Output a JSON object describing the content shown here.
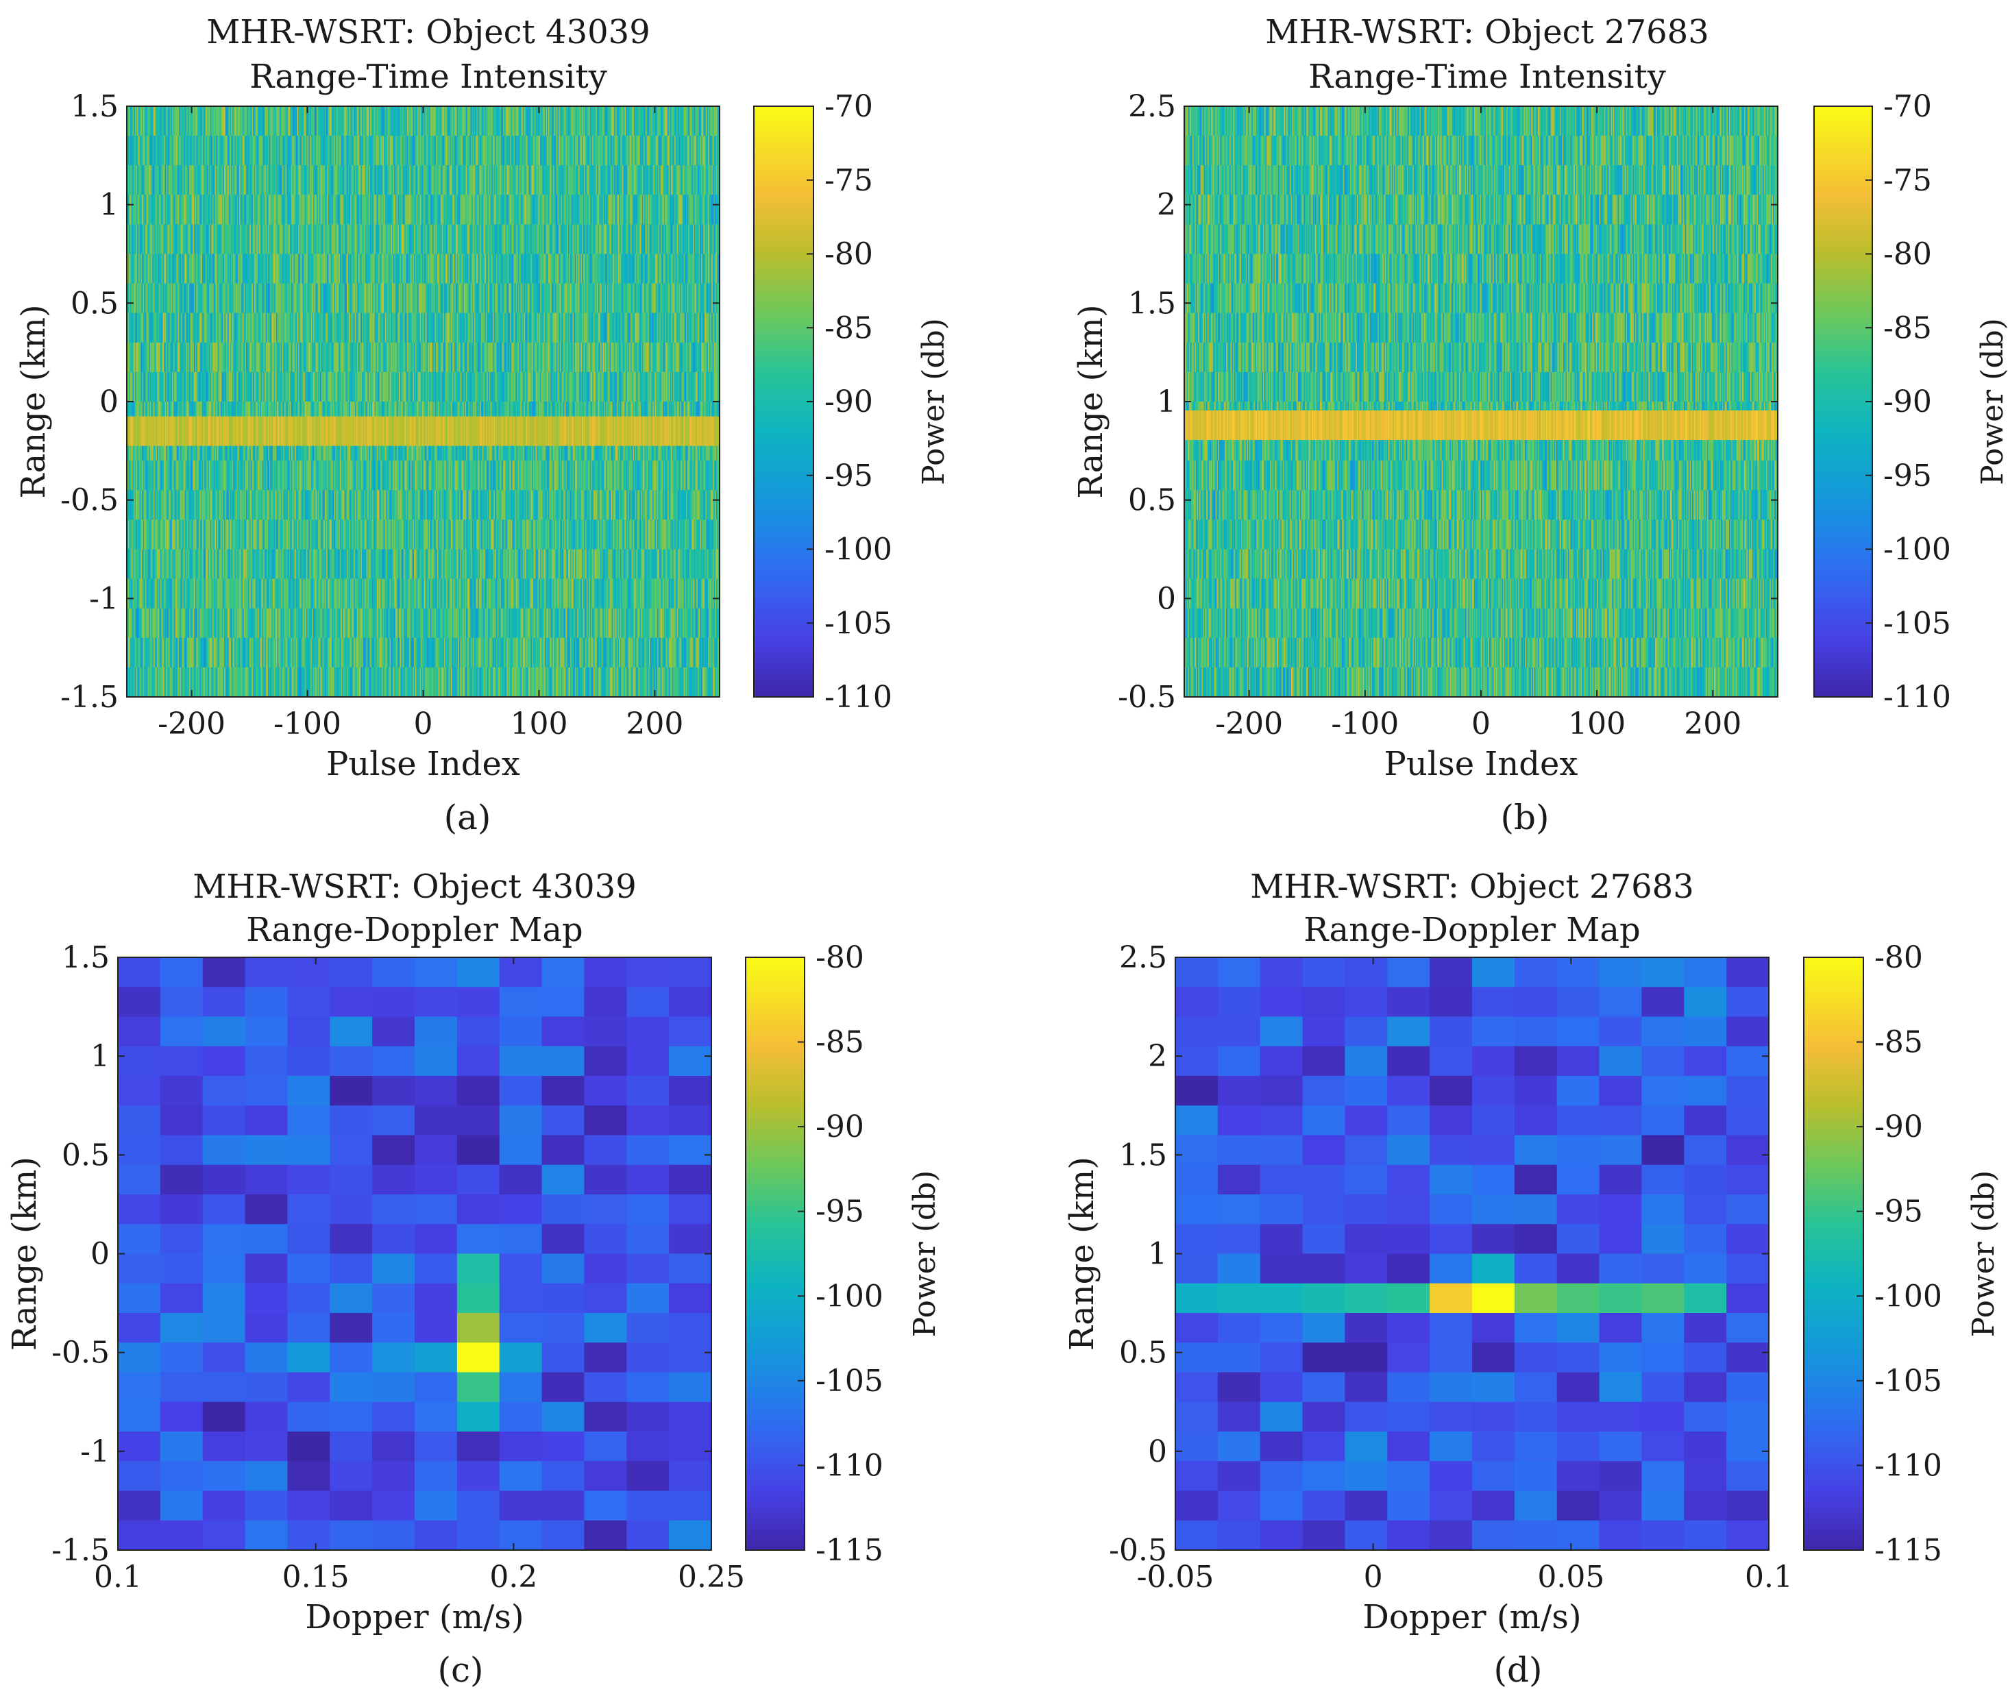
{
  "chart_data": [
    {
      "panel": "a",
      "caption": "(a)",
      "type": "heatmap",
      "title": [
        "MHR-WSRT: Object 43039",
        "Range-Time Intensity"
      ],
      "xlabel": "Pulse Index",
      "ylabel": "Range (km)",
      "xlim": [
        -256,
        256
      ],
      "ylim": [
        -1.5,
        1.5
      ],
      "xticks": [
        -200,
        -100,
        0,
        100,
        200
      ],
      "xticklabels": [
        "-200",
        "-100",
        "0",
        "100",
        "200"
      ],
      "yticks": [
        1.5,
        1,
        0.5,
        0,
        -0.5,
        -1,
        -1.5
      ],
      "yticklabels": [
        "1.5",
        "1",
        "0.5",
        "0",
        "-0.5",
        "-1",
        "-1.5"
      ],
      "colorbar": {
        "label": "Power (db)",
        "range": [
          -110,
          -70
        ],
        "ticks": [
          -70,
          -75,
          -80,
          -85,
          -90,
          -95,
          -100,
          -105,
          -110
        ],
        "ticklabels": [
          "-70",
          "-75",
          "-80",
          "-85",
          "-90",
          "-95",
          "-100",
          "-105",
          "-110"
        ]
      },
      "grid": {
        "x_cells": 512,
        "y_cells": 20
      },
      "background_power_db": -88,
      "target": {
        "range_km": -0.15,
        "range_width_km": 0.15,
        "power_db": -79
      }
    },
    {
      "panel": "b",
      "caption": "(b)",
      "type": "heatmap",
      "title": [
        "MHR-WSRT: Object 27683",
        "Range-Time Intensity"
      ],
      "xlabel": "Pulse Index",
      "ylabel": "Range (km)",
      "xlim": [
        -256,
        256
      ],
      "ylim": [
        -0.5,
        2.5
      ],
      "xticks": [
        -200,
        -100,
        0,
        100,
        200
      ],
      "xticklabels": [
        "-200",
        "-100",
        "0",
        "100",
        "200"
      ],
      "yticks": [
        2.5,
        2,
        1.5,
        1,
        0.5,
        0,
        -0.5
      ],
      "yticklabels": [
        "2.5",
        "2",
        "1.5",
        "1",
        "0.5",
        "0",
        "-0.5"
      ],
      "colorbar": {
        "label": "Power (db)",
        "range": [
          -110,
          -70
        ],
        "ticks": [
          -70,
          -75,
          -80,
          -85,
          -90,
          -95,
          -100,
          -105,
          -110
        ],
        "ticklabels": [
          "-70",
          "-75",
          "-80",
          "-85",
          "-90",
          "-95",
          "-100",
          "-105",
          "-110"
        ]
      },
      "grid": {
        "x_cells": 512,
        "y_cells": 20
      },
      "background_power_db": -88,
      "target": {
        "range_km": 0.88,
        "range_width_km": 0.15,
        "power_db": -77
      }
    },
    {
      "panel": "c",
      "caption": "(c)",
      "type": "heatmap",
      "title": [
        "MHR-WSRT: Object 43039",
        "Range-Doppler Map"
      ],
      "xlabel": "Dopper (m/s)",
      "ylabel": "Range (km)",
      "xlim": [
        0.1,
        0.25
      ],
      "ylim": [
        -1.5,
        1.5
      ],
      "xticks": [
        0.1,
        0.15,
        0.2,
        0.25
      ],
      "xticklabels": [
        "0.1",
        "0.15",
        "0.2",
        "0.25"
      ],
      "yticks": [
        1.5,
        1,
        0.5,
        0,
        -0.5,
        -1,
        -1.5
      ],
      "yticklabels": [
        "1.5",
        "1",
        "0.5",
        "0",
        "-0.5",
        "-1",
        "-1.5"
      ],
      "colorbar": {
        "label": "Power (db)",
        "range": [
          -115,
          -80
        ],
        "ticks": [
          -80,
          -85,
          -90,
          -95,
          -100,
          -105,
          -110,
          -115
        ],
        "ticklabels": [
          "-80",
          "-85",
          "-90",
          "-95",
          "-100",
          "-105",
          "-110",
          "-115"
        ]
      },
      "grid": {
        "x_cells": 14,
        "y_cells": 20
      },
      "background_power_db": -110,
      "peak_cells": [
        {
          "col": 8,
          "row": 13,
          "power_db": -80
        },
        {
          "col": 8,
          "row": 12,
          "power_db": -90
        },
        {
          "col": 8,
          "row": 11,
          "power_db": -96
        },
        {
          "col": 8,
          "row": 10,
          "power_db": -97
        },
        {
          "col": 8,
          "row": 14,
          "power_db": -95
        },
        {
          "col": 8,
          "row": 15,
          "power_db": -100
        },
        {
          "col": 7,
          "row": 13,
          "power_db": -102
        },
        {
          "col": 6,
          "row": 13,
          "power_db": -104
        },
        {
          "col": 4,
          "row": 13,
          "power_db": -103
        },
        {
          "col": 9,
          "row": 13,
          "power_db": -102
        }
      ]
    },
    {
      "panel": "d",
      "caption": "(d)",
      "type": "heatmap",
      "title": [
        "MHR-WSRT: Object 27683",
        "Range-Doppler Map"
      ],
      "xlabel": "Dopper (m/s)",
      "ylabel": "Range (km)",
      "xlim": [
        -0.05,
        0.1
      ],
      "ylim": [
        -0.5,
        2.5
      ],
      "xticks": [
        -0.05,
        0,
        0.05,
        0.1
      ],
      "xticklabels": [
        "-0.05",
        "0",
        "0.05",
        "0.1"
      ],
      "yticks": [
        2.5,
        2,
        1.5,
        1,
        0.5,
        0,
        -0.5
      ],
      "yticklabels": [
        "2.5",
        "2",
        "1.5",
        "1",
        "0.5",
        "0",
        "-0.5"
      ],
      "colorbar": {
        "label": "Power (db)",
        "range": [
          -115,
          -80
        ],
        "ticks": [
          -80,
          -85,
          -90,
          -95,
          -100,
          -105,
          -110,
          -115
        ],
        "ticklabels": [
          "-80",
          "-85",
          "-90",
          "-95",
          "-100",
          "-105",
          "-110",
          "-115"
        ]
      },
      "grid": {
        "x_cells": 14,
        "y_cells": 20
      },
      "background_power_db": -110,
      "peak_cells": [
        {
          "col": 7,
          "row": 11,
          "power_db": -80
        },
        {
          "col": 6,
          "row": 11,
          "power_db": -84
        },
        {
          "col": 8,
          "row": 11,
          "power_db": -92
        },
        {
          "col": 9,
          "row": 11,
          "power_db": -94
        },
        {
          "col": 10,
          "row": 11,
          "power_db": -95
        },
        {
          "col": 11,
          "row": 11,
          "power_db": -94
        },
        {
          "col": 5,
          "row": 11,
          "power_db": -96
        },
        {
          "col": 4,
          "row": 11,
          "power_db": -97
        },
        {
          "col": 3,
          "row": 11,
          "power_db": -98
        },
        {
          "col": 2,
          "row": 11,
          "power_db": -99
        },
        {
          "col": 1,
          "row": 11,
          "power_db": -99
        },
        {
          "col": 12,
          "row": 11,
          "power_db": -97
        },
        {
          "col": 0,
          "row": 11,
          "power_db": -100
        },
        {
          "col": 7,
          "row": 10,
          "power_db": -100
        }
      ]
    }
  ]
}
